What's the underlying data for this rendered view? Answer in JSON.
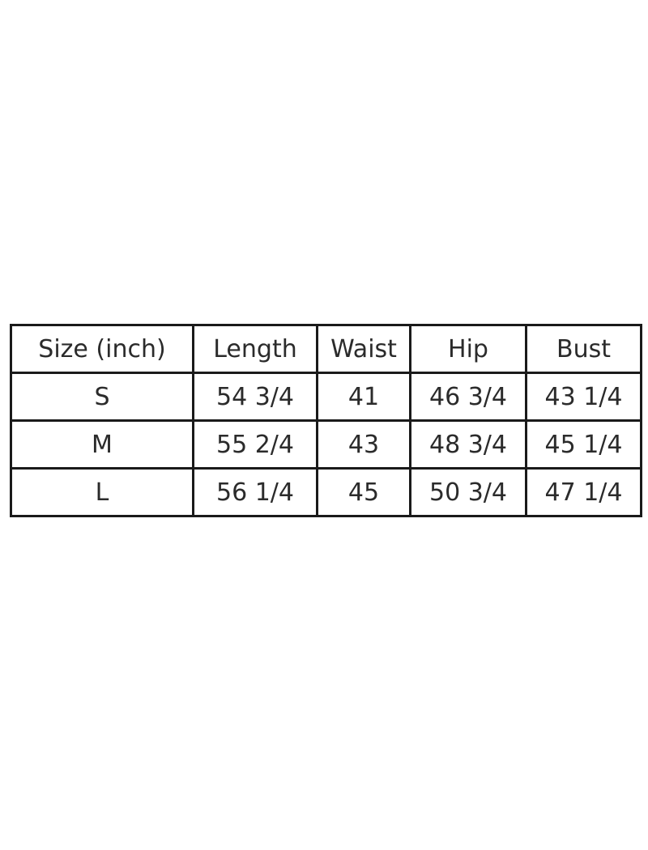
{
  "page": {
    "background_color": "#ffffff",
    "text_color": "#2b2b2b",
    "border_color": "#1a1a1a"
  },
  "table": {
    "headers": [
      "Size (inch)",
      "Length",
      "Waist",
      "Hip",
      "Bust"
    ],
    "rows": [
      [
        "S",
        "54 3/4",
        "41",
        "46 3/4",
        "43 1/4"
      ],
      [
        "M",
        "55 2/4",
        "43",
        "48 3/4",
        "45 1/4"
      ],
      [
        "L",
        "56 1/4",
        "45",
        "50 3/4",
        "47 1/4"
      ]
    ]
  },
  "chart_data": {
    "type": "table",
    "columns": [
      "Size (inch)",
      "Length",
      "Waist",
      "Hip",
      "Bust"
    ],
    "unit": "inch",
    "rows": [
      {
        "size": "S",
        "length": "54 3/4",
        "waist": "41",
        "hip": "46 3/4",
        "bust": "43 1/4"
      },
      {
        "size": "M",
        "length": "55 2/4",
        "waist": "43",
        "hip": "48 3/4",
        "bust": "45 1/4"
      },
      {
        "size": "L",
        "length": "56 1/4",
        "waist": "45",
        "hip": "50 3/4",
        "bust": "47 1/4"
      }
    ]
  }
}
